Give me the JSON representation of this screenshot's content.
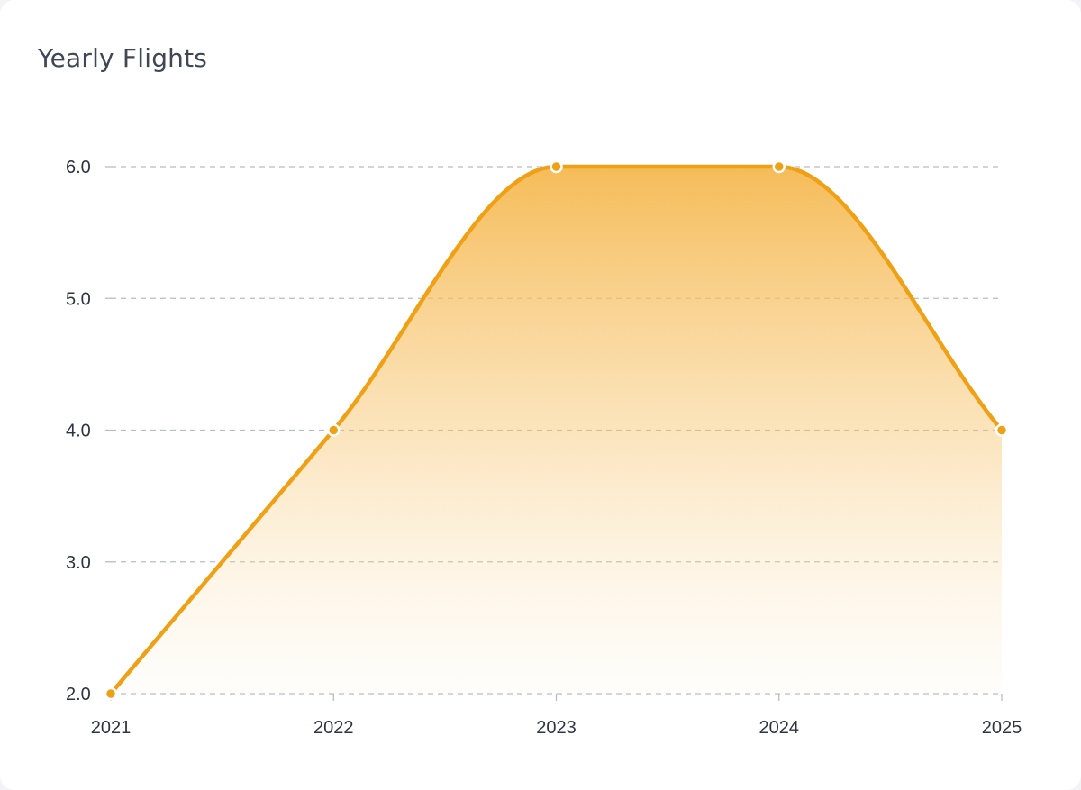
{
  "chart_data": {
    "type": "area",
    "title": "Yearly Flights",
    "xlabel": "",
    "ylabel": "",
    "categories": [
      "2021",
      "2022",
      "2023",
      "2024",
      "2025"
    ],
    "series": [
      {
        "values": [
          2,
          4,
          6,
          6,
          4
        ]
      }
    ],
    "ylim": [
      2,
      6
    ],
    "yticks": [
      "2.0",
      "3.0",
      "4.0",
      "5.0",
      "6.0"
    ],
    "grid": true,
    "legend": "none",
    "colors": {
      "line": "#f0a015",
      "fill_top": "#f5b64a",
      "grid": "#b8bcc4",
      "text": "#2f3440",
      "title": "#3f4654"
    }
  }
}
